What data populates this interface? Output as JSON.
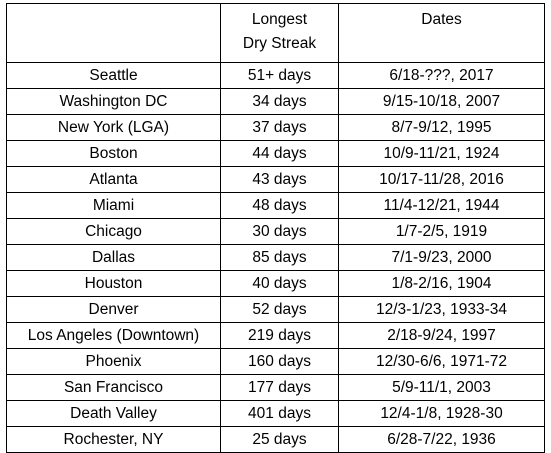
{
  "header": {
    "streak": [
      "Longest",
      "Dry Streak"
    ],
    "dates": "Dates"
  },
  "rows": [
    [
      "Seattle",
      "51+ days",
      "6/18-???, 2017"
    ],
    [
      "Washington DC",
      "34 days",
      "9/15-10/18, 2007"
    ],
    [
      "New York (LGA)",
      "37 days",
      "8/7-9/12, 1995"
    ],
    [
      "Boston",
      "44 days",
      "10/9-11/21, 1924"
    ],
    [
      "Atlanta",
      "43 days",
      "10/17-11/28, 2016"
    ],
    [
      "Miami",
      "48 days",
      "11/4-12/21, 1944"
    ],
    [
      "Chicago",
      "30 days",
      "1/7-2/5, 1919"
    ],
    [
      "Dallas",
      "85 days",
      "7/1-9/23, 2000"
    ],
    [
      "Houston",
      "40 days",
      "1/8-2/16, 1904"
    ],
    [
      "Denver",
      "52 days",
      "12/3-1/23, 1933-34"
    ],
    [
      "Los Angeles (Downtown)",
      "219 days",
      "2/18-9/24, 1997"
    ],
    [
      "Phoenix",
      "160 days",
      "12/30-6/6, 1971-72"
    ],
    [
      "San Francisco",
      "177 days",
      "5/9-11/1, 2003"
    ],
    [
      "Death Valley",
      "401 days",
      "12/4-1/8, 1928-30"
    ],
    [
      "Rochester, NY",
      "25 days",
      "6/28-7/22, 1936"
    ]
  ]
}
